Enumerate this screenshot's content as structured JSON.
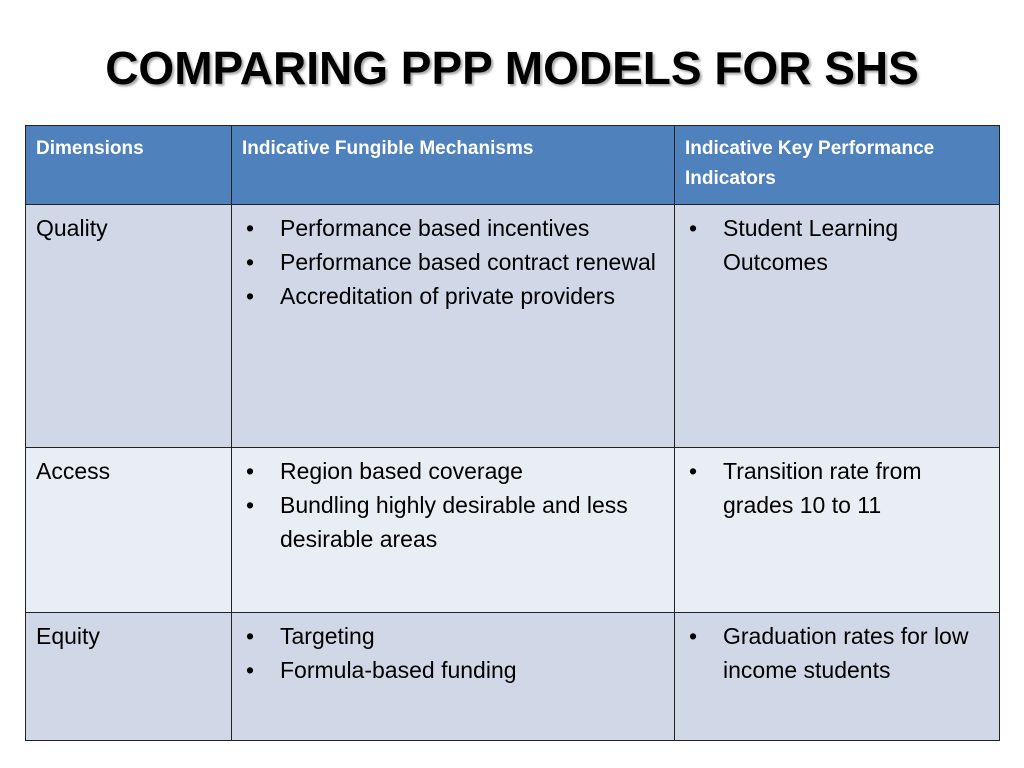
{
  "slide": {
    "title": "COMPARING PPP MODELS FOR SHS"
  },
  "table": {
    "headers": [
      "Dimensions",
      "Indicative Fungible Mechanisms",
      "Indicative Key Performance Indicators"
    ],
    "rows": [
      {
        "dimension": "Quality",
        "mechanisms": [
          "Performance based incentives",
          "Performance based contract renewal",
          "Accreditation of private providers"
        ],
        "kpis": [
          "Student Learning Outcomes"
        ]
      },
      {
        "dimension": "Access",
        "mechanisms": [
          "Region based  coverage",
          "Bundling  highly desirable and less desirable areas"
        ],
        "kpis": [
          "Transition rate from grades 10 to 11"
        ]
      },
      {
        "dimension": "Equity",
        "mechanisms": [
          "Targeting",
          "Formula-based funding"
        ],
        "kpis": [
          "Graduation rates for low income students"
        ]
      }
    ]
  },
  "colors": {
    "header_bg": "#4f81bd",
    "row_dark": "#d0d8e8",
    "row_light": "#e9edf4"
  }
}
